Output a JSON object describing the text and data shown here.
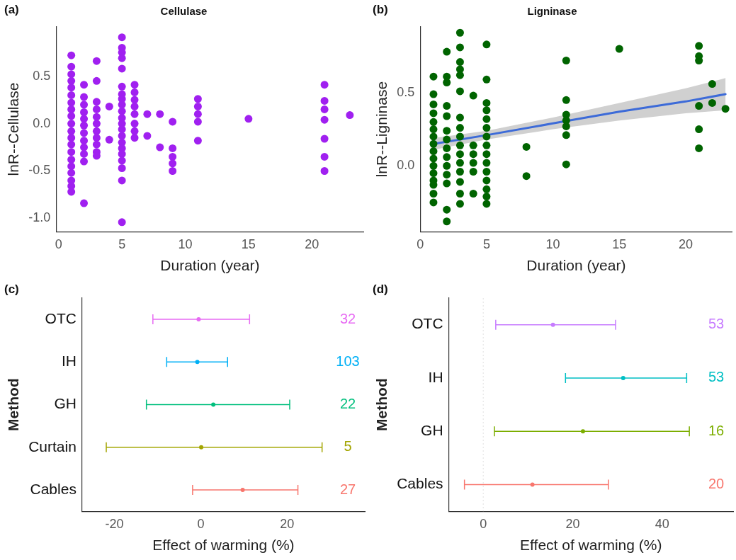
{
  "chart_data": [
    {
      "type": "scatter",
      "title": "Cellulase",
      "xlabel": "Duration (year)",
      "ylabel": "lnR--Cellulase",
      "annotations": [
        "(a)"
      ],
      "marker": "circle",
      "xlim": [
        -0.2,
        24.1
      ],
      "ylim": [
        -1.14,
        1.02
      ],
      "xticks": [
        0,
        5,
        10,
        15,
        20
      ],
      "yticks": [
        {
          "value": -1,
          "label": "-1.0"
        },
        {
          "value": -0.5,
          "label": "-0.5"
        },
        {
          "value": 0,
          "label": "0.0"
        },
        {
          "value": 0.5,
          "label": "0.5"
        }
      ],
      "series": [
        {
          "color": "#a020f0",
          "x": [
            1,
            1,
            1,
            1,
            1,
            1,
            1,
            1,
            1,
            1,
            1,
            1,
            1,
            1,
            1,
            1,
            1,
            1,
            1,
            1,
            2,
            2,
            2,
            2,
            2,
            2,
            2,
            2,
            2,
            2,
            2,
            2,
            3,
            3,
            3,
            3,
            3,
            3,
            3,
            3,
            3,
            3,
            3,
            4,
            4,
            5,
            5,
            5,
            5,
            5,
            5,
            5,
            5,
            5,
            5,
            5,
            5,
            5,
            5,
            5,
            5,
            5,
            5,
            5,
            5,
            5,
            6,
            6,
            6,
            6,
            6,
            6,
            6,
            6,
            7,
            7,
            8,
            8,
            9,
            9,
            9,
            9,
            9,
            11,
            11,
            11,
            11,
            11,
            15,
            21,
            21,
            21,
            21,
            21,
            21,
            21,
            23
          ],
          "values": [
            0.72,
            0.6,
            0.52,
            0.45,
            0.38,
            0.3,
            0.22,
            0.15,
            0.08,
            0.0,
            -0.08,
            -0.15,
            -0.22,
            -0.3,
            -0.38,
            -0.45,
            -0.52,
            -0.6,
            -0.66,
            -0.72,
            0.41,
            0.28,
            0.2,
            0.12,
            0.05,
            -0.02,
            -0.1,
            -0.18,
            -0.25,
            -0.32,
            -0.4,
            -0.84,
            0.66,
            0.45,
            0.23,
            0.15,
            0.07,
            0.0,
            -0.08,
            -0.15,
            -0.22,
            -0.3,
            -0.34,
            0.18,
            -0.17,
            0.91,
            0.8,
            0.75,
            0.69,
            0.58,
            0.39,
            0.31,
            0.26,
            0.2,
            0.13,
            0.06,
            0.0,
            -0.06,
            -0.13,
            -0.2,
            -0.26,
            -0.32,
            -0.39,
            -0.47,
            -0.6,
            -1.04,
            0.41,
            0.33,
            0.25,
            0.18,
            0.1,
            0.0,
            -0.08,
            -0.15,
            0.1,
            -0.13,
            0.1,
            -0.25,
            0.02,
            -0.26,
            -0.35,
            -0.42,
            -0.5,
            0.26,
            0.18,
            0.1,
            0.02,
            -0.18,
            0.05,
            0.41,
            0.24,
            0.15,
            0.04,
            -0.16,
            -0.35,
            -0.5,
            0.09
          ]
        }
      ]
    },
    {
      "type": "scatter",
      "title": "Ligninase",
      "xlabel": "Duration (year)",
      "ylabel": "lnR--Ligninase",
      "annotations": [
        "(b)"
      ],
      "xlim": [
        0,
        23.5
      ],
      "ylim": [
        -0.45,
        0.95
      ],
      "xticks": [
        0,
        5,
        10,
        15,
        20
      ],
      "yticks": [
        {
          "value": 0,
          "label": "0.0"
        },
        {
          "value": 0.5,
          "label": "0.5"
        }
      ],
      "series": [
        {
          "color": "#006400",
          "marker": "circle",
          "x": [
            1,
            1,
            1,
            1,
            1,
            1,
            1,
            1,
            1,
            1,
            1,
            1,
            1,
            1,
            1,
            1,
            2,
            2,
            2,
            2,
            2,
            2,
            2,
            2,
            2,
            2,
            2,
            2,
            2,
            2,
            3,
            3,
            3,
            3,
            3,
            3,
            3,
            3,
            3,
            3,
            3,
            3,
            3,
            3,
            3,
            3,
            4,
            4,
            4,
            4,
            4,
            4,
            5,
            5,
            5,
            5,
            5,
            5,
            5,
            5,
            5,
            5,
            5,
            5,
            5,
            5,
            5,
            8,
            8,
            11,
            11,
            11,
            11,
            11,
            11,
            11,
            15,
            21,
            21,
            21,
            21,
            21,
            21,
            22,
            22,
            23
          ],
          "values": [
            0.61,
            0.49,
            0.42,
            0.36,
            0.3,
            0.25,
            0.2,
            0.15,
            0.1,
            0.05,
            0.0,
            -0.05,
            -0.1,
            -0.13,
            -0.19,
            -0.25,
            0.78,
            0.61,
            0.57,
            0.41,
            0.34,
            0.24,
            0.18,
            0.12,
            0.06,
            0.0,
            -0.06,
            -0.12,
            -0.3,
            -0.38,
            0.91,
            0.81,
            0.71,
            0.66,
            0.62,
            0.51,
            0.33,
            0.26,
            0.2,
            0.14,
            0.08,
            0.02,
            -0.04,
            -0.11,
            -0.19,
            -0.26,
            0.48,
            0.14,
            0.08,
            0.02,
            -0.04,
            -0.19,
            0.83,
            0.59,
            0.43,
            0.38,
            0.32,
            0.26,
            0.2,
            0.14,
            0.08,
            0.02,
            -0.04,
            -0.1,
            -0.16,
            -0.21,
            -0.26,
            0.13,
            -0.07,
            0.72,
            0.45,
            0.35,
            0.31,
            0.27,
            0.21,
            0.01,
            0.8,
            0.82,
            0.75,
            0.72,
            0.41,
            0.25,
            0.12,
            0.56,
            0.43,
            0.39
          ]
        },
        {
          "type": "line",
          "color": "#3d6bd8",
          "x": [
            1,
            5,
            10,
            15,
            20,
            23
          ],
          "values": [
            0.15,
            0.21,
            0.29,
            0.37,
            0.44,
            0.49
          ],
          "lower": [
            0.11,
            0.18,
            0.25,
            0.31,
            0.36,
            0.38
          ],
          "upper": [
            0.19,
            0.24,
            0.33,
            0.43,
            0.53,
            0.6
          ]
        }
      ]
    },
    {
      "type": "scatter",
      "orientation": "horizontal",
      "xlabel": "Effect of warming (%)",
      "ylabel": "Method",
      "marker": "circle",
      "categories": [
        "OTC",
        "IH",
        "GH",
        "Curtain",
        "Cables"
      ],
      "xlim": [
        -27.5,
        38
      ],
      "xticks": [
        -20,
        0,
        20
      ],
      "series": [
        {
          "colors": [
            "#e76bf3",
            "#00b0f6",
            "#00bf7d",
            "#a3a500",
            "#f8766d"
          ],
          "values": [
            -0.5,
            -0.8,
            2.9,
            0.1,
            9.7
          ],
          "errors": [
            [
              -11.1,
              11.3
            ],
            [
              -7.9,
              6.2
            ],
            [
              -12.6,
              20.6
            ],
            [
              -21.9,
              28.1
            ],
            [
              -1.9,
              22.5
            ]
          ]
        }
      ],
      "annotations": [
        "(c)",
        "32",
        "103",
        "22",
        "5",
        "27"
      ]
    },
    {
      "type": "scatter",
      "orientation": "horizontal",
      "xlabel": "Effect of warming (%)",
      "ylabel": "Method",
      "marker": "circle",
      "categories": [
        "OTC",
        "IH",
        "GH",
        "Cables"
      ],
      "xlim": [
        -7.7,
        55.9
      ],
      "xticks": [
        0,
        20,
        40
      ],
      "ref_lines": [
        {
          "axis": "x",
          "value": 0,
          "color": "#e0e0e0",
          "line_style": "dotted"
        }
      ],
      "series": [
        {
          "colors": [
            "#c77cff",
            "#00bfc4",
            "#7cae00",
            "#f8766d"
          ],
          "values": [
            15.6,
            31.3,
            22.3,
            11.0
          ],
          "errors": [
            [
              2.8,
              29.6
            ],
            [
              18.4,
              45.5
            ],
            [
              2.5,
              46.1
            ],
            [
              -4.2,
              28.0
            ]
          ]
        }
      ],
      "annotations": [
        "(d)",
        "53",
        "53",
        "16",
        "20"
      ]
    }
  ]
}
